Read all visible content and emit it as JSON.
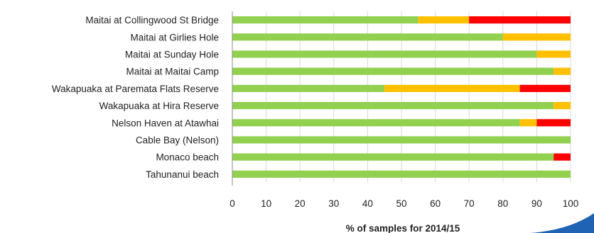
{
  "chart_data": {
    "type": "bar",
    "orientation": "horizontal",
    "stacked": true,
    "categories": [
      "Maitai at Collingwood St Bridge",
      "Maitai at Girlies Hole",
      "Maitai at Sunday Hole",
      "Maitai at Maitai Camp",
      "Wakapuaka at Paremata Flats Reserve",
      "Wakapuaka at Hira Reserve",
      "Nelson Haven at Atawhai",
      "Cable Bay (Nelson)",
      "Monaco beach",
      "Tahunanui beach"
    ],
    "series": [
      {
        "color": "#92d050",
        "values": [
          55,
          80,
          90,
          95,
          45,
          95,
          85,
          100,
          95,
          100
        ]
      },
      {
        "color": "#ffc000",
        "values": [
          15,
          20,
          10,
          5,
          40,
          5,
          5,
          0,
          0,
          0
        ]
      },
      {
        "color": "#ff0000",
        "values": [
          30,
          0,
          0,
          0,
          15,
          0,
          10,
          0,
          5,
          0
        ]
      }
    ],
    "xlabel": "% of samples for 2014/15",
    "xlim": [
      0,
      100
    ],
    "xticks": [
      "0",
      "10",
      "20",
      "30",
      "40",
      "50",
      "60",
      "70",
      "80",
      "90",
      "100"
    ],
    "grid": true,
    "legend": "none"
  },
  "decor": {
    "corner_color": "#1f63b4"
  }
}
